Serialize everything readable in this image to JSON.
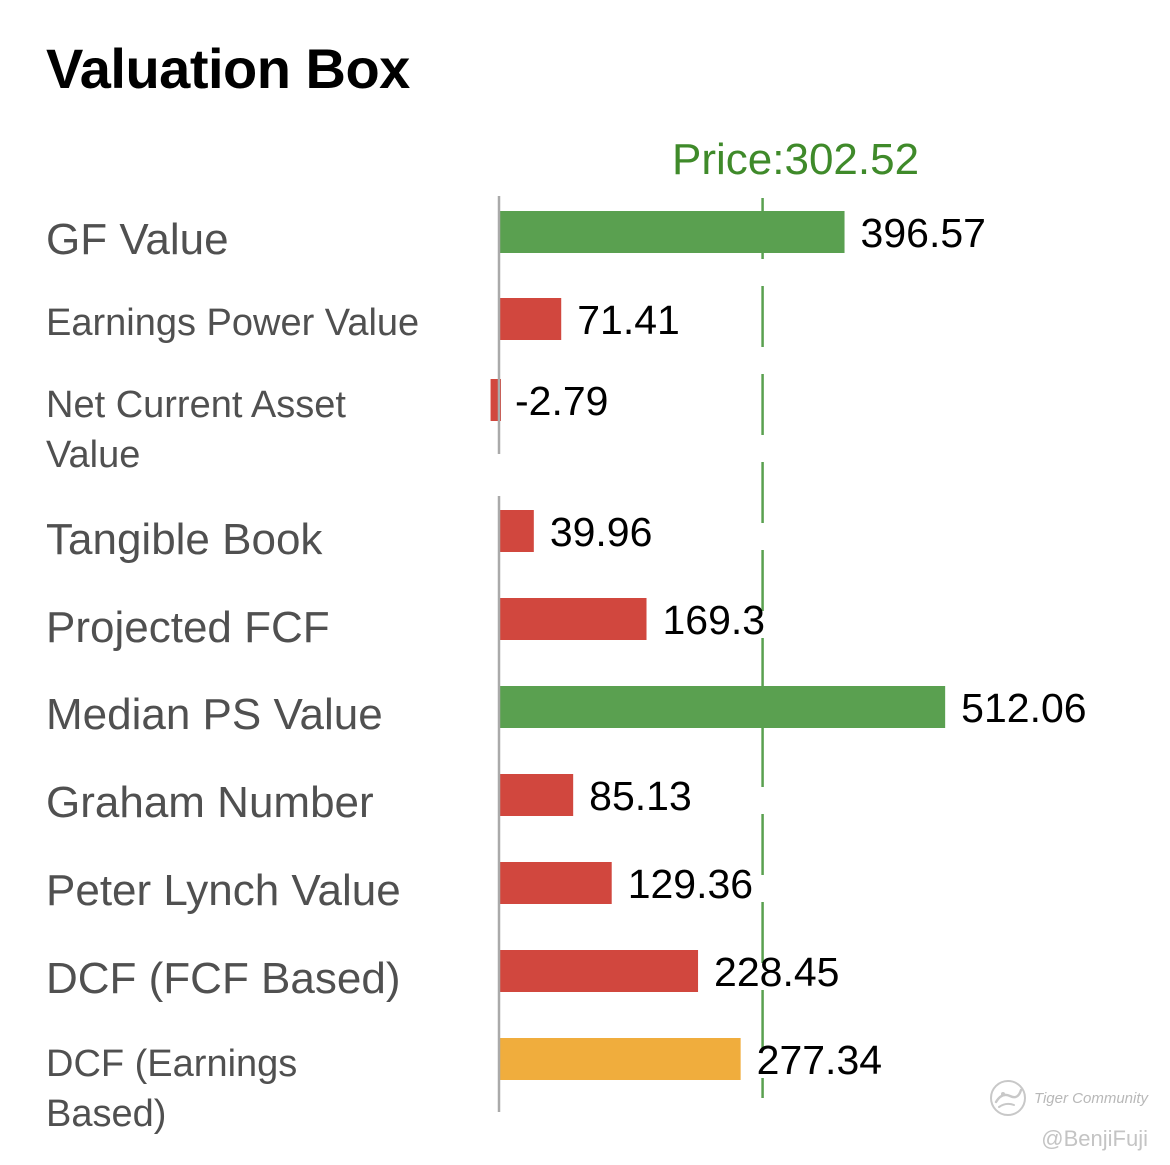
{
  "chart_data": {
    "type": "bar",
    "orientation": "horizontal",
    "title": "Valuation Box",
    "price_label": "Price:302.52",
    "price": 302.52,
    "categories": [
      "GF Value",
      "Earnings Power Value",
      "Net Current Asset Value",
      "Tangible Book",
      "Projected FCF",
      "Median PS Value",
      "Graham Number",
      "Peter Lynch Value",
      "DCF (FCF Based)",
      "DCF (Earnings Based)"
    ],
    "values": [
      396.57,
      71.41,
      -2.79,
      39.96,
      169.3,
      512.06,
      85.13,
      129.36,
      228.45,
      277.34
    ],
    "value_labels": [
      "396.57",
      "71.41",
      "-2.79",
      "39.96",
      "169.3",
      "512.06",
      "85.13",
      "129.36",
      "228.45",
      "277.34"
    ],
    "bar_colors": [
      "#5aa050",
      "#d1473e",
      "#d1473e",
      "#d1473e",
      "#d1473e",
      "#5aa050",
      "#d1473e",
      "#d1473e",
      "#d1473e",
      "#f0ad3d"
    ],
    "xlim": [
      -5,
      512.06
    ],
    "xlabel": "",
    "ylabel": "",
    "grid": false,
    "legend": "none"
  },
  "colors": {
    "price_line": "#5aa050",
    "price_text": "#3f8a2a",
    "axis": "#aaaaaa",
    "label_text": "#505050",
    "value_text": "#000000"
  },
  "watermark": {
    "brand": "Tiger Community",
    "handle": "@BenjiFuji"
  }
}
